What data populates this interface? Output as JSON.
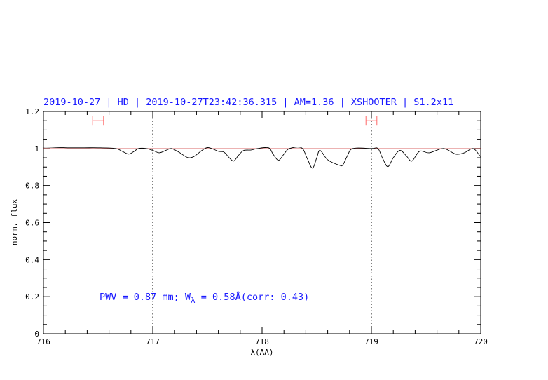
{
  "chart_data": {
    "type": "line",
    "title": "2019-10-27 | HD | 2019-10-27T23:42:36.315 | AM=1.36 | XSHOOTER | S1.2x11",
    "xlabel": "λ(AA)",
    "ylabel": "norm. flux",
    "xlim": [
      716,
      720
    ],
    "ylim": [
      0,
      1.2
    ],
    "x_ticks": [
      716,
      717,
      718,
      719,
      720
    ],
    "x_tick_labels": [
      "716",
      "717",
      "718",
      "719",
      "720"
    ],
    "y_ticks": [
      0,
      0.2,
      0.4,
      0.6,
      0.8,
      1.0,
      1.2
    ],
    "y_tick_labels": [
      "0",
      "0.2",
      "0.4",
      "0.6",
      "0.8",
      "1",
      "1.2"
    ],
    "grid": false,
    "reference_line": 1.0,
    "vertical_markers": [
      717,
      719
    ],
    "continuum_ranges": [
      [
        716.45,
        716.55
      ],
      [
        718.95,
        719.05
      ]
    ],
    "continuum_range_level": 1.15,
    "annotation": {
      "prefix": "PWV = 0.87 mm; W",
      "sub": "λ",
      "suffix": " = 0.58Å(corr: 0.43)"
    },
    "colors": {
      "title": "#1a1aff",
      "spectrum": "#000000",
      "reference": "#d04040",
      "ranges": "#ff6666"
    },
    "series": [
      {
        "x": [
          716.0,
          716.02,
          716.24,
          716.5,
          716.66,
          716.72,
          716.78,
          716.83,
          716.87,
          716.94,
          717.0,
          717.06,
          717.12,
          717.17,
          717.24,
          717.32,
          717.38,
          717.45,
          717.51,
          717.6,
          717.65,
          717.7,
          717.74,
          717.78,
          717.83,
          717.9,
          717.96,
          718.06,
          718.1,
          718.15,
          718.2,
          718.25,
          718.36,
          718.41,
          718.46,
          718.5,
          718.53,
          718.6,
          718.71,
          718.74,
          718.78,
          718.83,
          719.0,
          719.06,
          719.1,
          719.15,
          719.2,
          719.26,
          719.32,
          719.37,
          719.44,
          719.53,
          719.66,
          719.77,
          719.85,
          719.93,
          719.99,
          720.0
        ],
        "y": [
          1.004,
          1.008,
          1.004,
          1.004,
          1.0,
          0.985,
          0.97,
          0.985,
          1.0,
          1.0,
          0.99,
          0.977,
          0.99,
          1.0,
          0.98,
          0.951,
          0.958,
          0.99,
          1.005,
          0.985,
          0.981,
          0.95,
          0.932,
          0.96,
          0.989,
          0.992,
          1.0,
          1.004,
          0.97,
          0.936,
          0.97,
          1.0,
          1.004,
          0.95,
          0.894,
          0.95,
          0.99,
          0.939,
          0.909,
          0.913,
          0.96,
          1.0,
          1.0,
          1.0,
          0.95,
          0.902,
          0.95,
          0.99,
          0.96,
          0.932,
          0.985,
          0.977,
          1.0,
          0.97,
          0.977,
          1.0,
          0.962,
          0.955
        ]
      }
    ]
  }
}
